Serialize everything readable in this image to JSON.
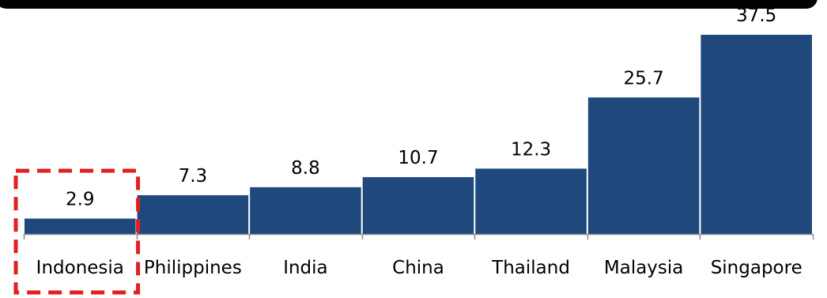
{
  "chart_data": {
    "type": "bar",
    "categories": [
      "Indonesia",
      "Philippines",
      "India",
      "China",
      "Thailand",
      "Malaysia",
      "Singapore"
    ],
    "values": [
      2.9,
      7.3,
      8.8,
      10.7,
      12.3,
      25.7,
      37.5
    ],
    "data_labels": [
      "2.9",
      "7.3",
      "8.8",
      "10.7",
      "12.3",
      "25.7",
      "37.5"
    ],
    "title": "",
    "xlabel": "",
    "ylabel": "",
    "ylim": [
      0,
      37.5
    ],
    "grid": false,
    "legend": "none",
    "highlight_category": "Indonesia",
    "bar_color": "#1F497D",
    "highlight_color": "#E02020"
  }
}
